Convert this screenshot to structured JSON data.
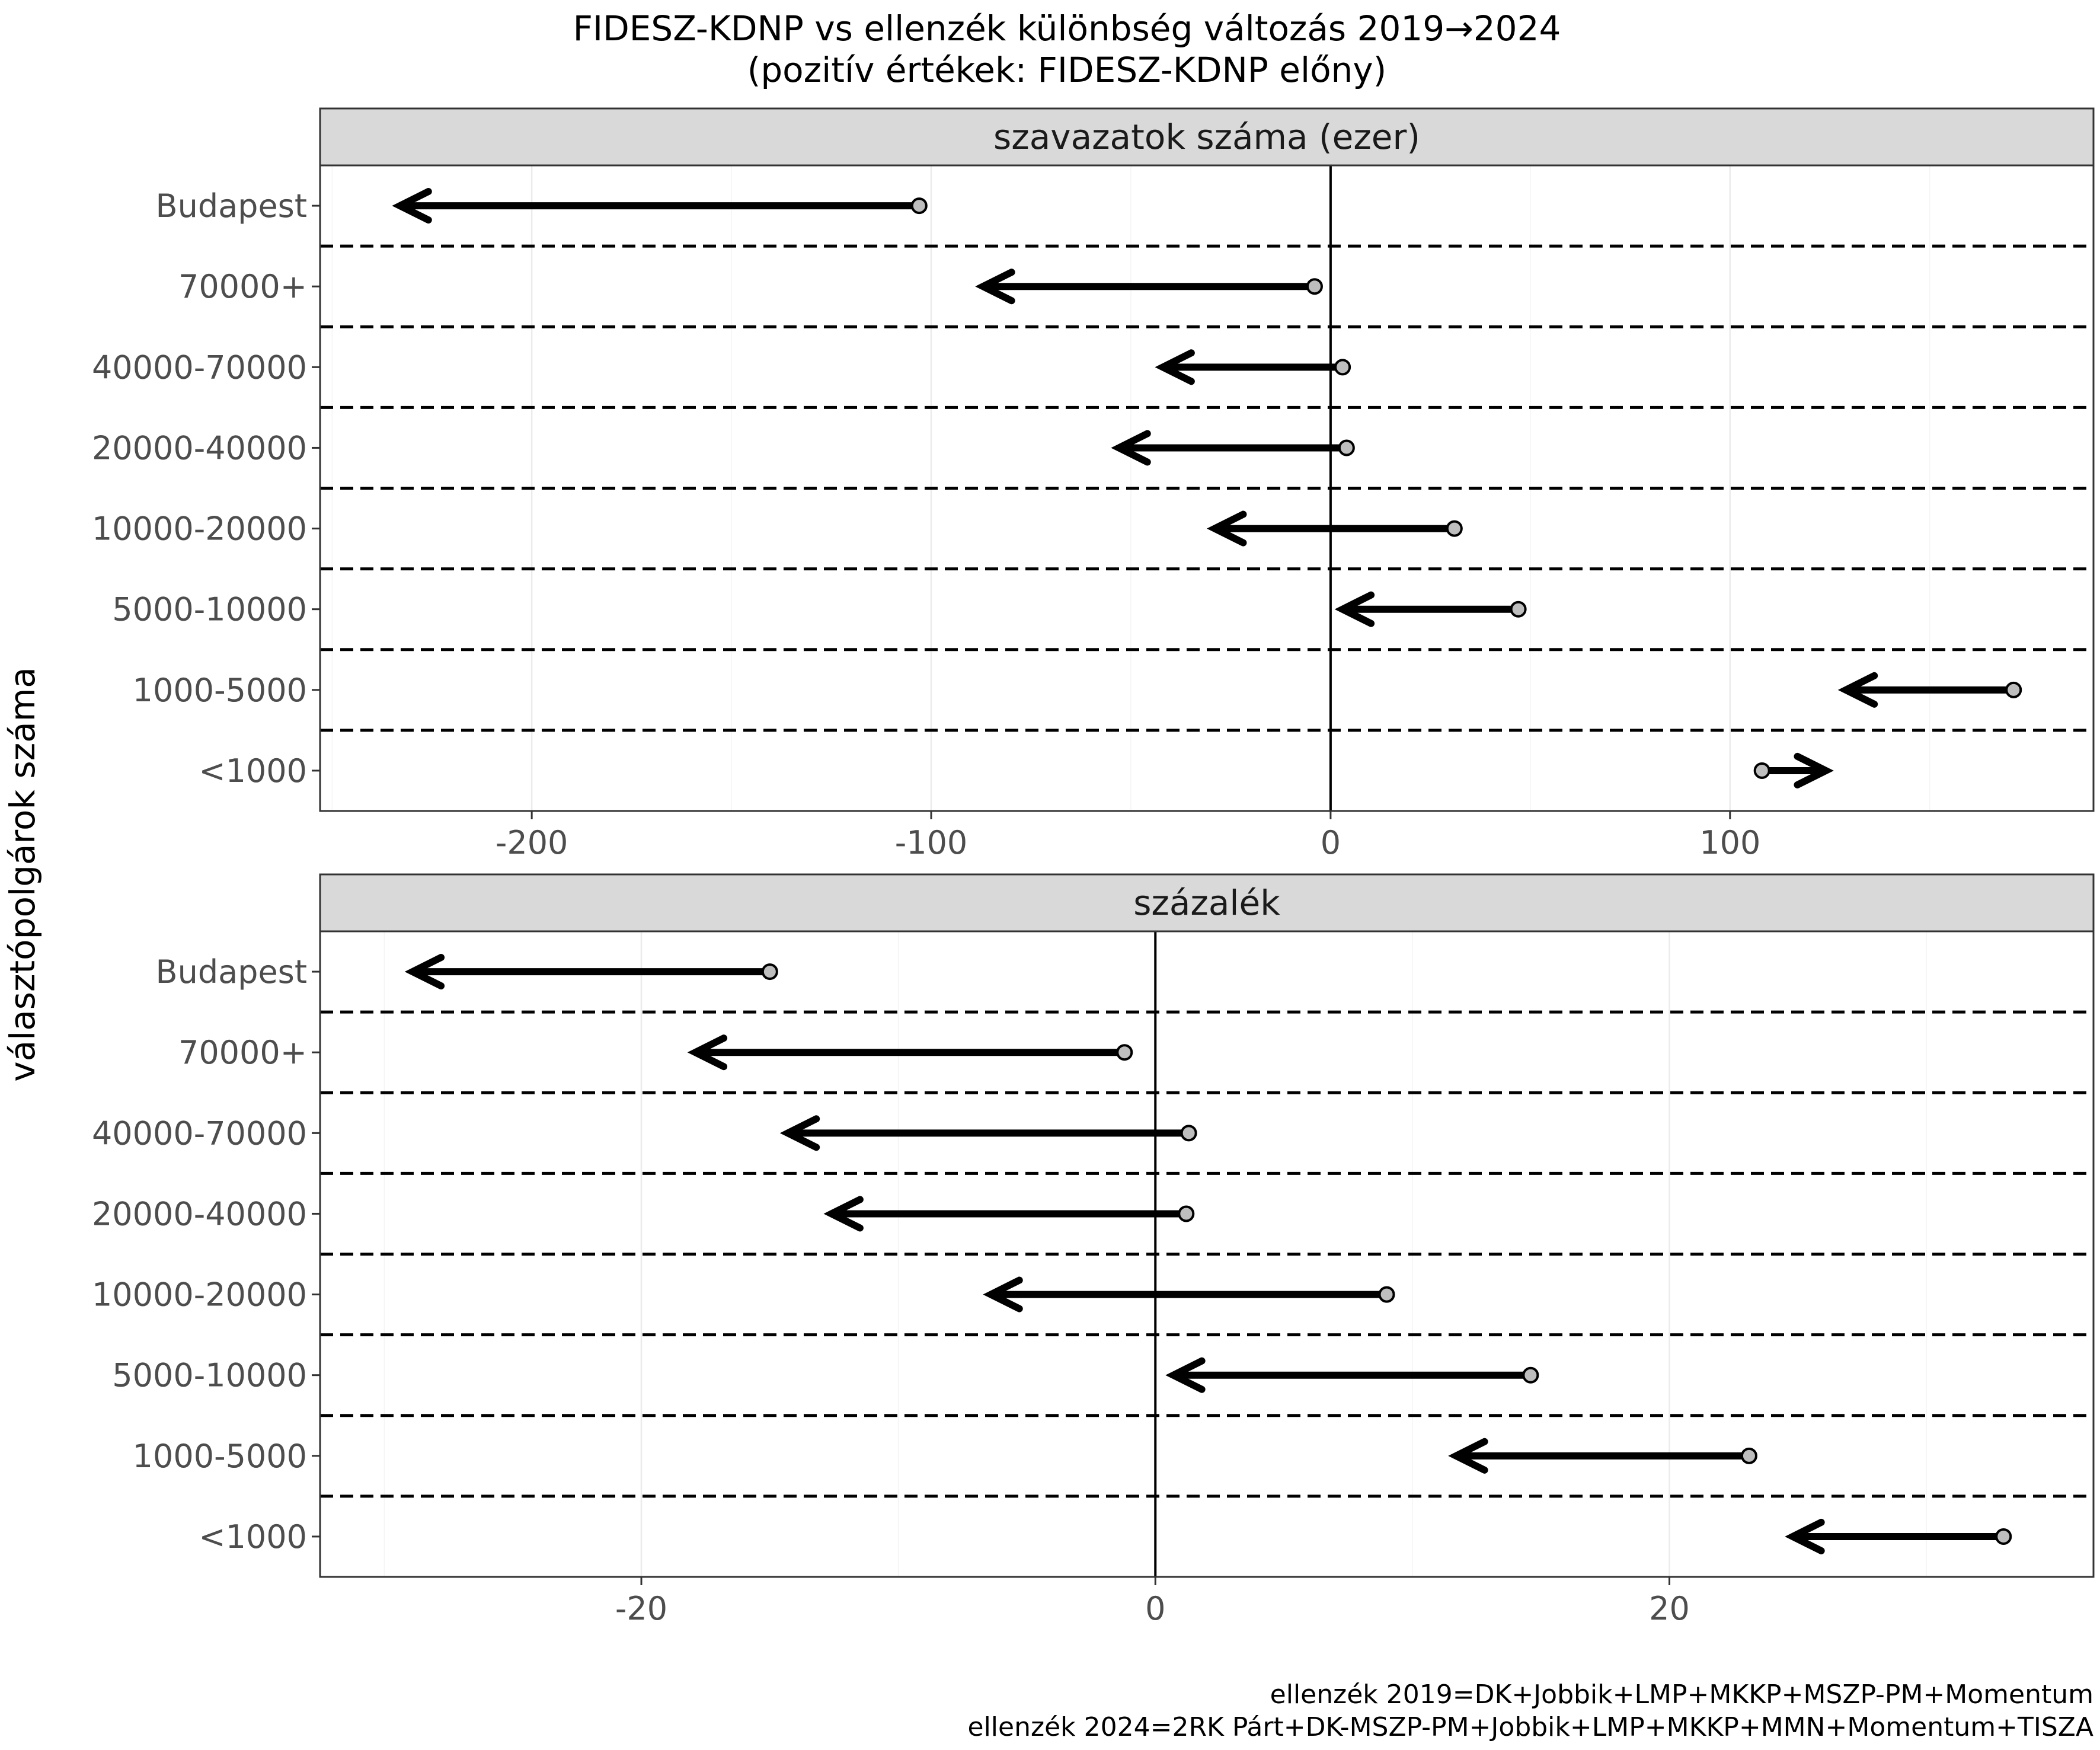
{
  "title": "FIDESZ-KDNP vs ellenzék különbség változás 2019→2024",
  "subtitle": "(pozitív értékek: FIDESZ-KDNP előny)",
  "ylabel": "választópolgárok száma",
  "caption_line1": "ellenzék 2019=DK+Jobbik+LMP+MKKP+MSZP-PM+Momentum",
  "caption_line2": "ellenzék 2024=2RK Párt+DK-MSZP-PM+Jobbik+LMP+MKKP+MMN+Momentum+TISZA",
  "chart_data": [
    {
      "type": "arrow",
      "facet": "szavazatok száma (ezer)",
      "categories": [
        "Budapest",
        "70000+",
        "40000-70000",
        "20000-40000",
        "10000-20000",
        "5000-10000",
        "1000-5000",
        "<1000"
      ],
      "x_ticks": [
        -200,
        -100,
        0,
        100
      ],
      "xlim": [
        -253,
        191
      ],
      "from_2019": [
        -103,
        -4,
        3,
        4,
        31,
        47,
        171,
        108
      ],
      "to_2024": [
        -233,
        -87,
        -42,
        -53,
        -29,
        3,
        129,
        124
      ]
    },
    {
      "type": "arrow",
      "facet": "százalék",
      "categories": [
        "Budapest",
        "70000+",
        "40000-70000",
        "20000-40000",
        "10000-20000",
        "5000-10000",
        "1000-5000",
        "<1000"
      ],
      "x_ticks": [
        -20,
        0,
        20
      ],
      "xlim": [
        -32.5,
        36.5
      ],
      "from_2019": [
        -15,
        -1.2,
        1.3,
        1.2,
        9,
        14.6,
        23.1,
        33
      ],
      "to_2024": [
        -28.9,
        -17.9,
        -14.3,
        -12.6,
        -6.4,
        0.7,
        11.7,
        24.8
      ]
    }
  ]
}
